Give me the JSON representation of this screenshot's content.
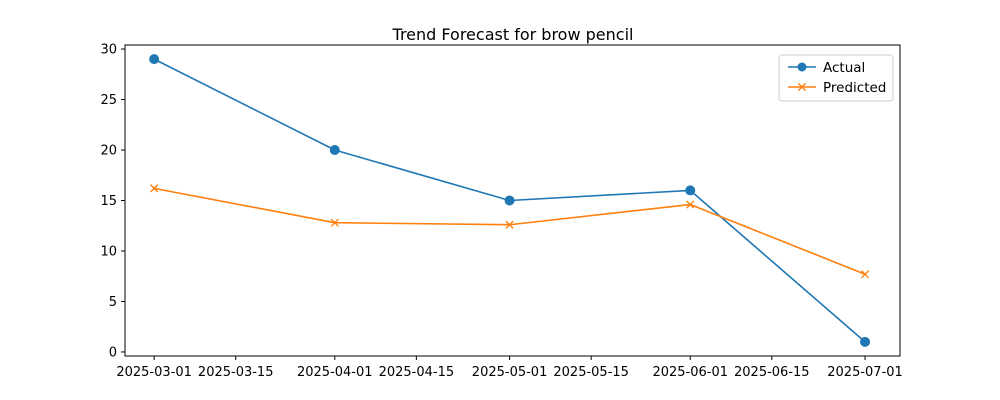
{
  "chart_data": {
    "type": "line",
    "title": "Trend Forecast for brow pencil",
    "xlabel": "",
    "ylabel": "",
    "x": [
      "2025-03-01",
      "2025-04-01",
      "2025-05-01",
      "2025-06-01",
      "2025-07-01"
    ],
    "series": [
      {
        "name": "Actual",
        "values": [
          29,
          20,
          15,
          16,
          1
        ],
        "color": "#1f77b4",
        "marker": "circle"
      },
      {
        "name": "Predicted",
        "values": [
          16.2,
          12.8,
          12.6,
          14.6,
          7.7
        ],
        "color": "#ff7f0e",
        "marker": "x"
      }
    ],
    "x_ticks": [
      "2025-03-01",
      "2025-03-15",
      "2025-04-01",
      "2025-04-15",
      "2025-05-01",
      "2025-05-15",
      "2025-06-01",
      "2025-06-15",
      "2025-07-01"
    ],
    "y_ticks": [
      0,
      5,
      10,
      15,
      20,
      25,
      30
    ],
    "xlim": [
      "2025-02-24",
      "2025-07-07"
    ],
    "ylim": [
      -0.4,
      30.4
    ],
    "legend_position": "top-right",
    "grid": false
  }
}
